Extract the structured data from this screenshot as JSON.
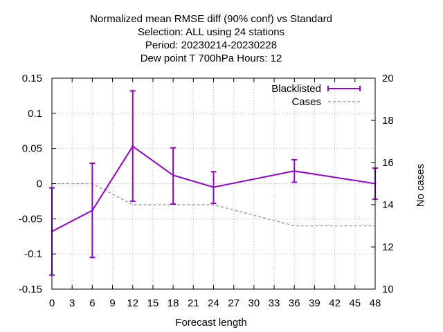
{
  "chart_data": {
    "type": "line",
    "title_lines": [
      "Normalized mean RMSE diff (90% conf) vs Standard",
      "Selection: ALL using    24 stations",
      "Period: 20230214-20230228",
      "Dew point T 700hPa   Hours:  12"
    ],
    "xlabel": "Forecast length",
    "ylabel": "",
    "y2label": "No cases",
    "xlim": [
      0,
      48
    ],
    "ylim": [
      -0.15,
      0.15
    ],
    "y2lim": [
      10,
      20
    ],
    "x_ticks": [
      0,
      3,
      6,
      9,
      12,
      15,
      18,
      21,
      24,
      27,
      30,
      33,
      36,
      39,
      42,
      45,
      48
    ],
    "y_ticks": [
      -0.15,
      -0.1,
      -0.05,
      0,
      0.05,
      0.1,
      0.15
    ],
    "y_tick_labels": [
      "-0.15",
      "-0.1",
      "-0.05",
      "0",
      "0.05",
      "0.1",
      "0.15"
    ],
    "y2_ticks": [
      10,
      12,
      14,
      16,
      18,
      20
    ],
    "grid": true,
    "legend_position": "top-right",
    "colors": {
      "blacklisted": "#9400d3",
      "cases": "#a0a0a0",
      "grid": "#b0b0b0"
    },
    "series": [
      {
        "name": "Blacklisted",
        "axis": "y",
        "style": "line-errorbars",
        "x": [
          0,
          6,
          12,
          18,
          24,
          36,
          48
        ],
        "y": [
          -0.068,
          -0.038,
          0.053,
          0.012,
          -0.005,
          0.018,
          0.0
        ],
        "y_low": [
          -0.13,
          -0.105,
          -0.025,
          -0.029,
          -0.028,
          0.002,
          -0.022
        ],
        "y_high": [
          -0.006,
          0.029,
          0.132,
          0.051,
          0.017,
          0.034,
          0.022
        ]
      },
      {
        "name": "Cases",
        "axis": "y2",
        "style": "dashed",
        "x": [
          0,
          6,
          12,
          18,
          24,
          36,
          48
        ],
        "y": [
          15,
          15,
          14,
          14,
          14,
          13,
          13
        ]
      }
    ]
  }
}
